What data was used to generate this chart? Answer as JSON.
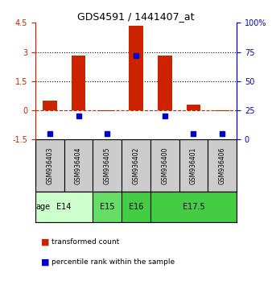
{
  "title": "GDS4591 / 1441407_at",
  "samples": [
    "GSM936403",
    "GSM936404",
    "GSM936405",
    "GSM936402",
    "GSM936400",
    "GSM936401",
    "GSM936406"
  ],
  "transformed_counts": [
    0.5,
    2.8,
    -0.05,
    4.35,
    2.8,
    0.3,
    -0.05
  ],
  "percentile_ranks": [
    5,
    20,
    5,
    72,
    20,
    5,
    5
  ],
  "age_groups": [
    {
      "label": "E14",
      "start": 0,
      "end": 2,
      "color": "#ccffcc"
    },
    {
      "label": "E15",
      "start": 2,
      "end": 3,
      "color": "#66dd66"
    },
    {
      "label": "E16",
      "start": 3,
      "end": 4,
      "color": "#44cc44"
    },
    {
      "label": "E17.5",
      "start": 4,
      "end": 7,
      "color": "#44cc44"
    }
  ],
  "ylim_left": [
    -1.5,
    4.5
  ],
  "ylim_right": [
    0,
    100
  ],
  "yticks_left": [
    -1.5,
    0,
    1.5,
    3,
    4.5
  ],
  "yticks_right": [
    0,
    25,
    50,
    75,
    100
  ],
  "ytick_labels_left": [
    "-1.5",
    "0",
    "1.5",
    "3",
    "4.5"
  ],
  "ytick_labels_right": [
    "0",
    "25",
    "50",
    "75",
    "100%"
  ],
  "hlines": [
    1.5,
    3.0
  ],
  "red_color": "#cc2200",
  "blue_color": "#0000cc",
  "bar_width": 0.5,
  "sample_bg_color": "#cccccc",
  "age_light_green": "#ccffcc",
  "age_dark_green": "#44cc44",
  "dashed_zero_color": "#cc2200"
}
